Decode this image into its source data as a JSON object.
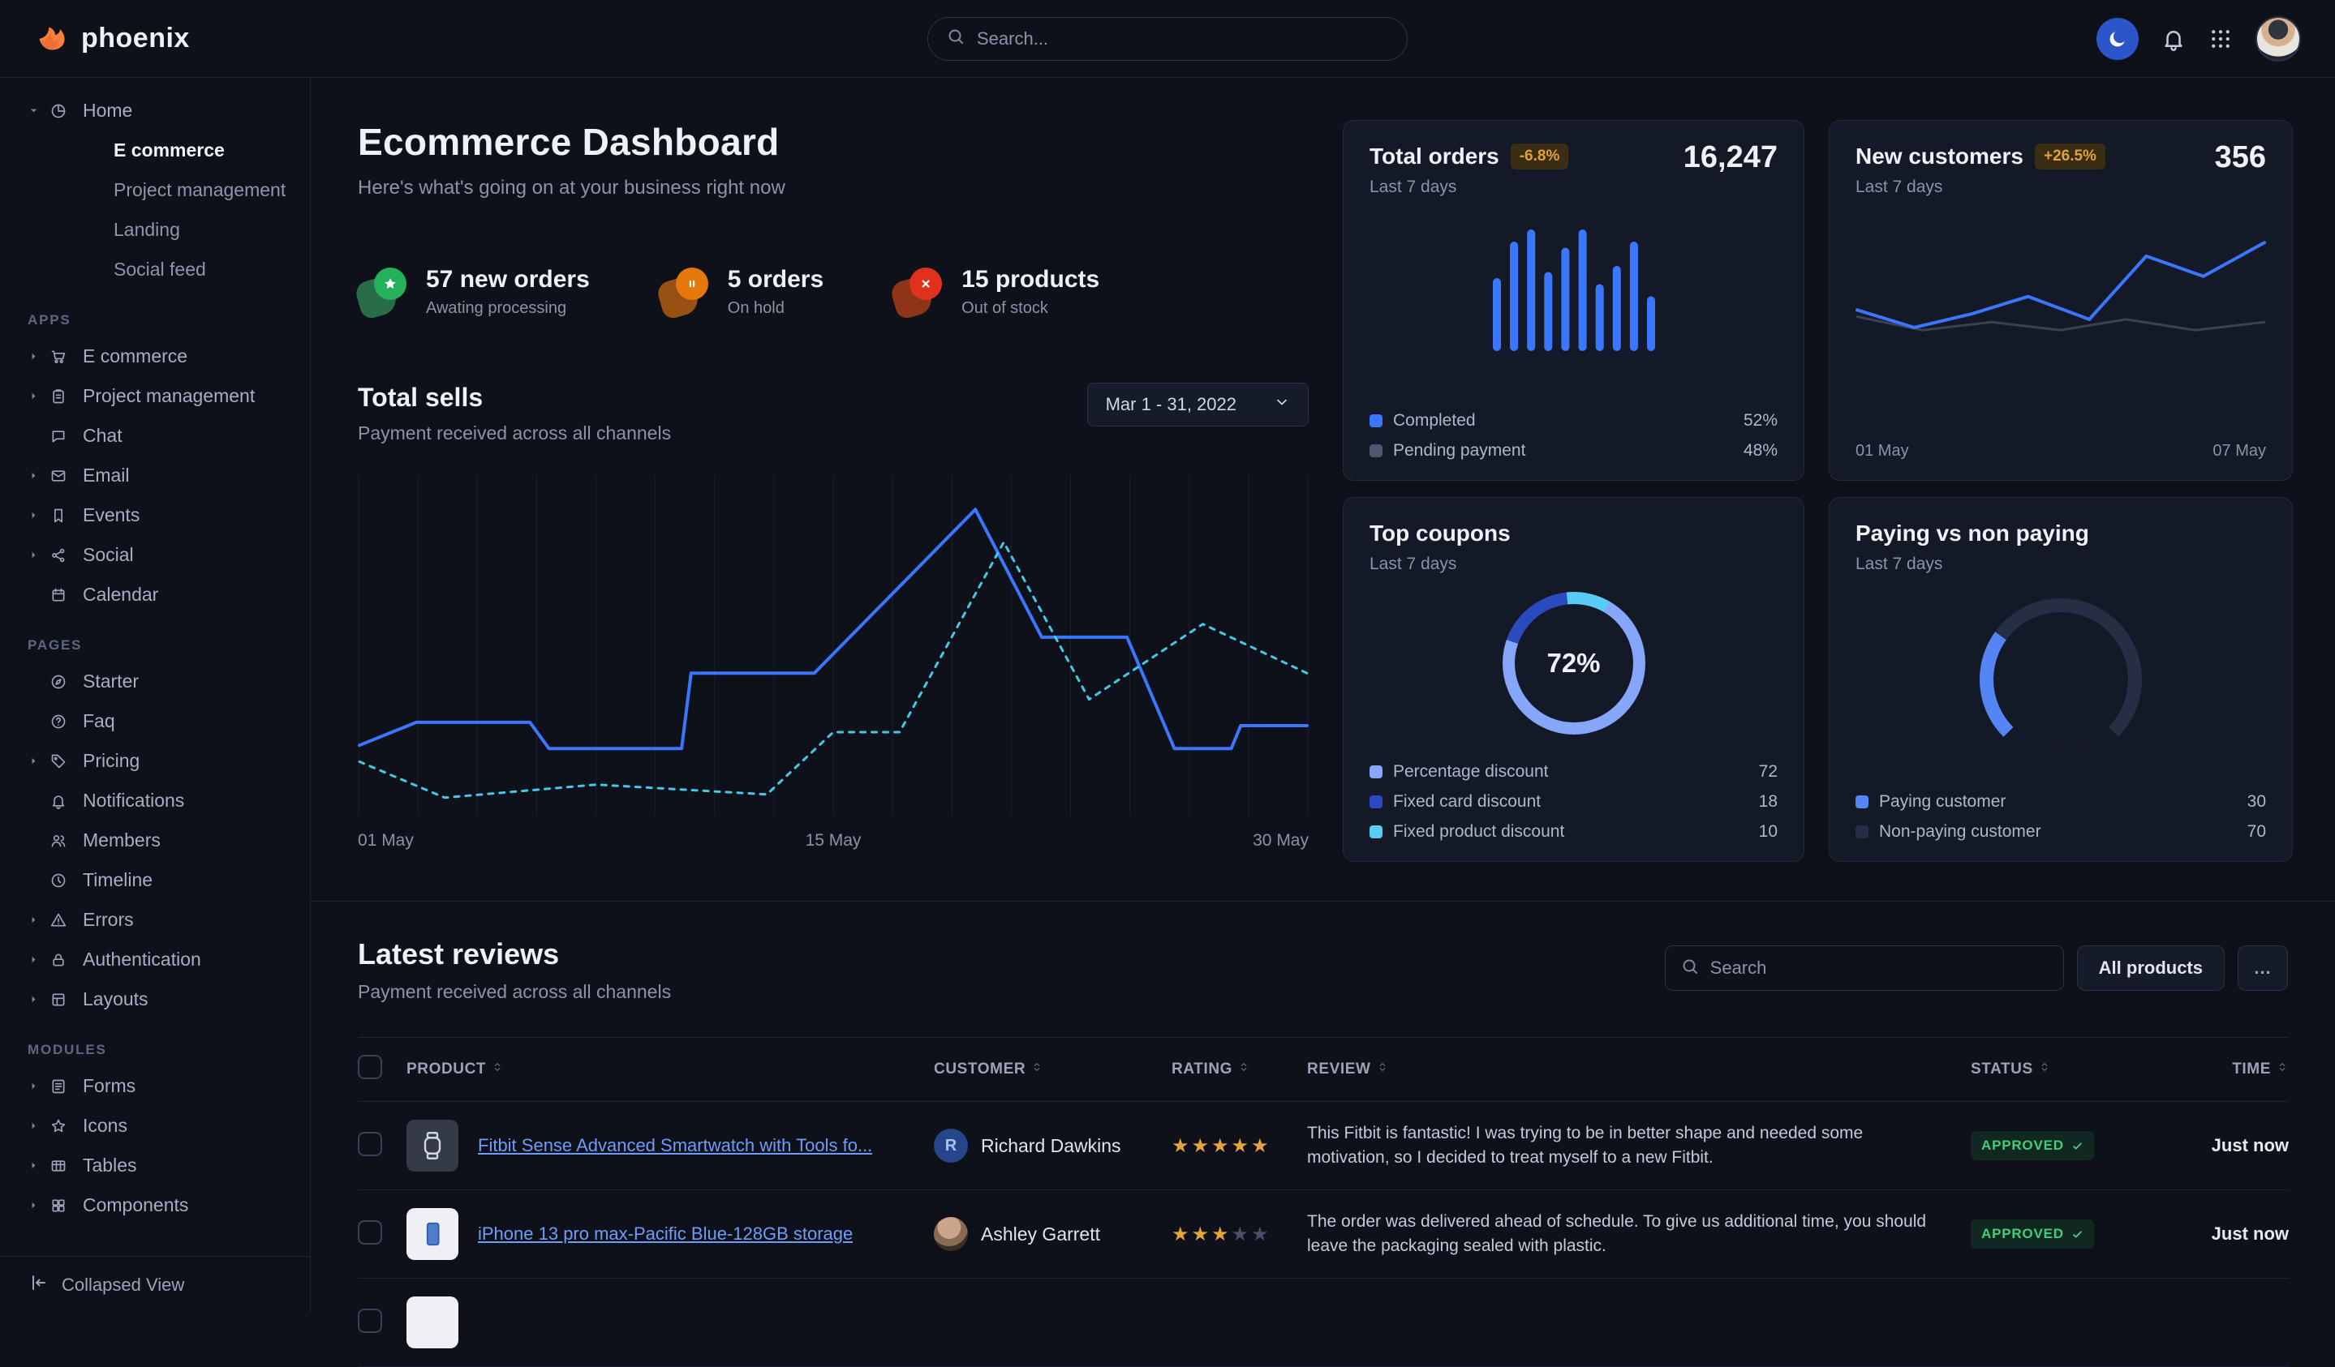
{
  "navbar": {
    "brand": "phoenix",
    "search_placeholder": "Search..."
  },
  "sidebar": {
    "home": {
      "label": "Home",
      "icon": "pie",
      "children": [
        {
          "label": "E commerce",
          "active": true
        },
        {
          "label": "Project management",
          "active": false
        },
        {
          "label": "Landing",
          "active": false
        },
        {
          "label": "Social feed",
          "active": false
        }
      ]
    },
    "sections": [
      {
        "label": "APPS",
        "items": [
          {
            "label": "E commerce",
            "icon": "cart",
            "caret": true
          },
          {
            "label": "Project management",
            "icon": "clipboard",
            "caret": true
          },
          {
            "label": "Chat",
            "icon": "chat",
            "caret": false
          },
          {
            "label": "Email",
            "icon": "mail",
            "caret": true
          },
          {
            "label": "Events",
            "icon": "bookmark",
            "caret": true
          },
          {
            "label": "Social",
            "icon": "share",
            "caret": true
          },
          {
            "label": "Calendar",
            "icon": "calendar",
            "caret": false
          }
        ]
      },
      {
        "label": "PAGES",
        "items": [
          {
            "label": "Starter",
            "icon": "compass",
            "caret": false
          },
          {
            "label": "Faq",
            "icon": "help",
            "caret": false
          },
          {
            "label": "Pricing",
            "icon": "tag",
            "caret": true
          },
          {
            "label": "Notifications",
            "icon": "bell",
            "caret": false
          },
          {
            "label": "Members",
            "icon": "users",
            "caret": false
          },
          {
            "label": "Timeline",
            "icon": "clock",
            "caret": false
          },
          {
            "label": "Errors",
            "icon": "alert",
            "caret": true
          },
          {
            "label": "Authentication",
            "icon": "lock",
            "caret": true
          },
          {
            "label": "Layouts",
            "icon": "layout",
            "caret": true
          }
        ]
      },
      {
        "label": "MODULES",
        "items": [
          {
            "label": "Forms",
            "icon": "form",
            "caret": true
          },
          {
            "label": "Icons",
            "icon": "staro",
            "caret": true
          },
          {
            "label": "Tables",
            "icon": "table",
            "caret": true
          },
          {
            "label": "Components",
            "icon": "puzzle",
            "caret": true
          }
        ]
      }
    ],
    "footer": {
      "label": "Collapsed View"
    }
  },
  "header": {
    "title": "Ecommerce Dashboard",
    "subtitle": "Here's what's going on at your business right now"
  },
  "stats": [
    {
      "value": "57 new orders",
      "caption": "Awating processing",
      "icon": "star",
      "circ": "#25b05a",
      "blob": "#2e7d4f"
    },
    {
      "value": "5 orders",
      "caption": "On hold",
      "icon": "pause",
      "circ": "#e5780b",
      "blob": "#b05c13"
    },
    {
      "value": "15 products",
      "caption": "Out of stock",
      "icon": "x",
      "circ": "#e0311d",
      "blob": "#a33b1a"
    }
  ],
  "total_sells": {
    "title": "Total sells",
    "subtitle": "Payment received across all channels",
    "date_range": "Mar 1 - 31, 2022",
    "chart": {
      "type": "line",
      "x_ticks": [
        "01 May",
        "15 May",
        "30 May"
      ],
      "grid_columns": 16,
      "series": [
        {
          "name": "current",
          "style": "solid",
          "color": "#3b76ff",
          "width": 4,
          "points": [
            [
              0,
              20
            ],
            [
              6,
              27
            ],
            [
              18,
              27
            ],
            [
              20,
              19
            ],
            [
              34,
              19
            ],
            [
              35,
              42
            ],
            [
              48,
              42
            ],
            [
              65,
              92
            ],
            [
              72,
              53
            ],
            [
              81,
              53
            ],
            [
              86,
              19
            ],
            [
              92,
              19
            ],
            [
              93,
              26
            ],
            [
              100,
              26
            ]
          ]
        },
        {
          "name": "previous",
          "style": "dashed",
          "color": "#45c8e8",
          "width": 3,
          "points": [
            [
              0,
              15
            ],
            [
              9,
              4
            ],
            [
              25,
              8
            ],
            [
              43,
              5
            ],
            [
              50,
              24
            ],
            [
              57,
              24
            ],
            [
              68,
              82
            ],
            [
              77,
              34
            ],
            [
              89,
              57
            ],
            [
              100,
              42
            ]
          ]
        }
      ]
    }
  },
  "cards": {
    "total_orders": {
      "title": "Total orders",
      "badge": "-6.8%",
      "value": "16,247",
      "period": "Last 7 days",
      "chart": {
        "type": "bar",
        "color": "#3b76ff",
        "values": [
          60,
          90,
          100,
          65,
          85,
          100,
          55,
          70,
          90,
          45
        ]
      },
      "legend": [
        {
          "label": "Completed",
          "value": "52%",
          "color": "#3b76ff"
        },
        {
          "label": "Pending payment",
          "value": "48%",
          "color": "#51586e"
        }
      ]
    },
    "new_customers": {
      "title": "New customers",
      "badge": "+26.5%",
      "value": "356",
      "period": "Last 7 days",
      "x_labels": [
        "01 May",
        "07 May"
      ],
      "chart": {
        "type": "line",
        "series": [
          {
            "name": "previous",
            "style": "solid",
            "color": "#3a4154",
            "width": 3,
            "points": [
              [
                0,
                40
              ],
              [
                16,
                30
              ],
              [
                33,
                36
              ],
              [
                50,
                30
              ],
              [
                66,
                38
              ],
              [
                83,
                30
              ],
              [
                100,
                36
              ]
            ]
          },
          {
            "name": "current",
            "style": "solid",
            "color": "#3b76ff",
            "width": 4,
            "points": [
              [
                0,
                45
              ],
              [
                14,
                32
              ],
              [
                28,
                42
              ],
              [
                42,
                55
              ],
              [
                57,
                38
              ],
              [
                71,
                85
              ],
              [
                85,
                70
              ],
              [
                100,
                95
              ]
            ]
          }
        ]
      }
    },
    "top_coupons": {
      "title": "Top coupons",
      "period": "Last 7 days",
      "center_value": "72%",
      "chart_type": "donut",
      "start_angle": 30,
      "segments": [
        {
          "label": "Percentage discount",
          "value": 72,
          "display": "72%",
          "color": "#85a6f9"
        },
        {
          "label": "Fixed card discount",
          "value": 18,
          "display": "18%",
          "color": "#2a4bbf"
        },
        {
          "label": "Fixed product discount",
          "value": 10,
          "display": "10%",
          "color": "#59ccf5"
        }
      ]
    },
    "paying": {
      "title": "Paying vs non paying",
      "period": "Last 7 days",
      "chart_type": "gauge",
      "gauge_span": 270,
      "gauge_start": 225,
      "segments": [
        {
          "label": "Paying customer",
          "value": 30,
          "display": "30%",
          "color": "#5585f5"
        },
        {
          "label": "Non-paying customer",
          "value": 70,
          "display": "70%",
          "color": "#262e44"
        }
      ]
    }
  },
  "reviews": {
    "title": "Latest reviews",
    "subtitle": "Payment received across all channels",
    "search_placeholder": "Search",
    "filter_label": "All products",
    "more_label": "...",
    "columns": [
      "PRODUCT",
      "CUSTOMER",
      "RATING",
      "REVIEW",
      "STATUS",
      "TIME"
    ],
    "rows": [
      {
        "product": "Fitbit Sense Advanced Smartwatch with Tools fo...",
        "thumb": "watch",
        "customer": "Richard Dawkins",
        "avatar_type": "letter",
        "avatar_initial": "R",
        "rating": 5,
        "review": "This Fitbit is fantastic! I was trying to be in better shape and needed some motivation, so I decided to treat myself to a new Fitbit.",
        "status": "APPROVED",
        "time": "Just now"
      },
      {
        "product": "iPhone 13 pro max-Pacific Blue-128GB storage",
        "thumb": "phone",
        "customer": "Ashley Garrett",
        "avatar_type": "photo",
        "avatar_initial": "A",
        "rating": 3,
        "review": "The order was delivered ahead of schedule. To give us additional time, you should leave the packaging sealed with plastic.",
        "status": "APPROVED",
        "time": "Just now"
      },
      {
        "product": "",
        "thumb": "blank",
        "customer": "",
        "avatar_type": "none",
        "avatar_initial": "",
        "rating": 0,
        "review": "",
        "status": "",
        "time": ""
      }
    ]
  }
}
